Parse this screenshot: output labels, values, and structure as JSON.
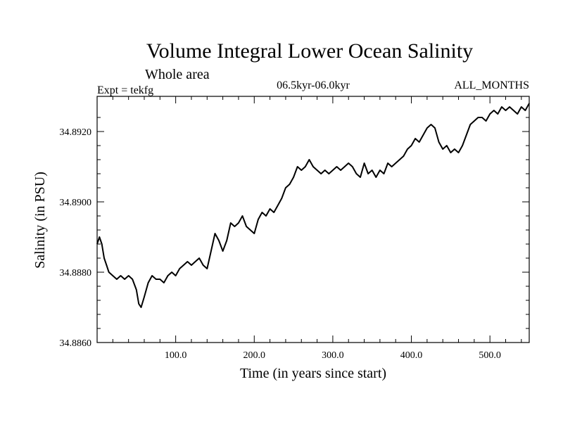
{
  "chart_data": {
    "type": "line",
    "title": "Volume Integral Lower Ocean Salinity",
    "subtitle": "Whole area",
    "period_label": "06.5kyr-06.0kyr",
    "experiment_label": "Expt = tekfg",
    "months_label": "ALL_MONTHS",
    "xlabel": "Time (in years since start)",
    "ylabel": "Salinity (in PSU)",
    "xlim": [
      0,
      550
    ],
    "ylim": [
      34.886,
      34.893
    ],
    "x_ticks": [
      100,
      200,
      300,
      400,
      500
    ],
    "x_tick_labels": [
      "100.0",
      "200.0",
      "300.0",
      "400.0",
      "500.0"
    ],
    "y_ticks": [
      34.886,
      34.888,
      34.89,
      34.892
    ],
    "y_tick_labels": [
      "34.8860",
      "34.8880",
      "34.8900",
      "34.8920"
    ],
    "grid": false,
    "series": [
      {
        "name": "Salinity",
        "color": "#000000",
        "x": [
          0,
          3,
          6,
          9,
          12,
          15,
          20,
          25,
          30,
          35,
          40,
          45,
          50,
          53,
          56,
          60,
          65,
          70,
          75,
          80,
          85,
          90,
          95,
          100,
          105,
          110,
          115,
          120,
          125,
          130,
          135,
          140,
          145,
          150,
          155,
          160,
          165,
          170,
          175,
          180,
          185,
          190,
          195,
          200,
          205,
          210,
          215,
          220,
          225,
          230,
          235,
          240,
          245,
          250,
          255,
          260,
          265,
          270,
          275,
          280,
          285,
          290,
          295,
          300,
          305,
          310,
          315,
          320,
          325,
          330,
          335,
          340,
          345,
          350,
          355,
          360,
          365,
          370,
          375,
          380,
          385,
          390,
          395,
          400,
          405,
          410,
          415,
          420,
          425,
          430,
          435,
          440,
          445,
          450,
          455,
          460,
          465,
          470,
          475,
          480,
          485,
          490,
          495,
          500,
          505,
          510,
          515,
          520,
          525,
          530,
          535,
          540,
          545,
          550
        ],
        "values": [
          34.8888,
          34.889,
          34.8888,
          34.8884,
          34.8882,
          34.888,
          34.8879,
          34.8878,
          34.8879,
          34.8878,
          34.8879,
          34.8878,
          34.8875,
          34.8871,
          34.887,
          34.8873,
          34.8877,
          34.8879,
          34.8878,
          34.8878,
          34.8877,
          34.8879,
          34.888,
          34.8879,
          34.8881,
          34.8882,
          34.8883,
          34.8882,
          34.8883,
          34.8884,
          34.8882,
          34.8881,
          34.8886,
          34.8891,
          34.8889,
          34.8886,
          34.8889,
          34.8894,
          34.8893,
          34.8894,
          34.8896,
          34.8893,
          34.8892,
          34.8891,
          34.8895,
          34.8897,
          34.8896,
          34.8898,
          34.8897,
          34.8899,
          34.8901,
          34.8904,
          34.8905,
          34.8907,
          34.891,
          34.8909,
          34.891,
          34.8912,
          34.891,
          34.8909,
          34.8908,
          34.8909,
          34.8908,
          34.8909,
          34.891,
          34.8909,
          34.891,
          34.8911,
          34.891,
          34.8908,
          34.8907,
          34.8911,
          34.8908,
          34.8909,
          34.8907,
          34.8909,
          34.8908,
          34.8911,
          34.891,
          34.8911,
          34.8912,
          34.8913,
          34.8915,
          34.8916,
          34.8918,
          34.8917,
          34.8919,
          34.8921,
          34.8922,
          34.8921,
          34.8917,
          34.8915,
          34.8916,
          34.8914,
          34.8915,
          34.8914,
          34.8916,
          34.8919,
          34.8922,
          34.8923,
          34.8924,
          34.8924,
          34.8923,
          34.8925,
          34.8926,
          34.8925,
          34.8927,
          34.8926,
          34.8927,
          34.8926,
          34.8925,
          34.8927,
          34.8926,
          34.8928
        ]
      }
    ]
  }
}
